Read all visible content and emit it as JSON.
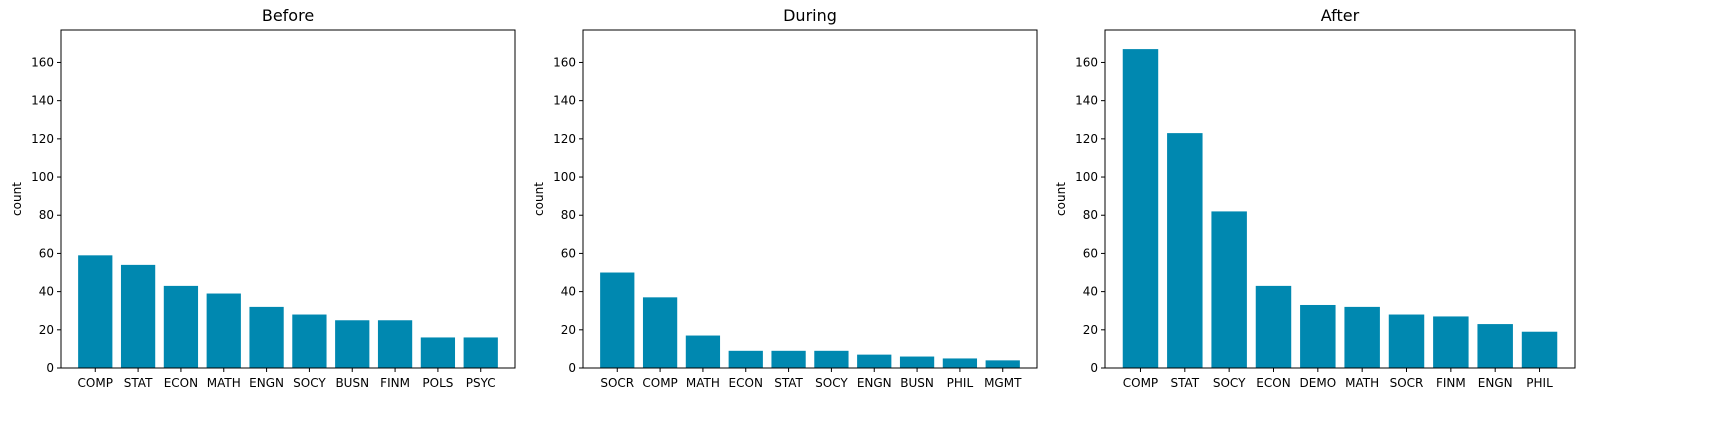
{
  "figure": {
    "bar_color": "#0088b0"
  },
  "chart_data": [
    {
      "type": "bar",
      "title": "Before",
      "ylabel": "count",
      "xlabel": "",
      "ylim": [
        0,
        177
      ],
      "yticks": [
        0,
        20,
        40,
        60,
        80,
        100,
        120,
        140,
        160
      ],
      "categories": [
        "COMP",
        "STAT",
        "ECON",
        "MATH",
        "ENGN",
        "SOCY",
        "BUSN",
        "FINM",
        "POLS",
        "PSYC"
      ],
      "values": [
        59,
        54,
        43,
        39,
        32,
        28,
        25,
        25,
        16,
        16
      ]
    },
    {
      "type": "bar",
      "title": "During",
      "ylabel": "count",
      "xlabel": "",
      "ylim": [
        0,
        177
      ],
      "yticks": [
        0,
        20,
        40,
        60,
        80,
        100,
        120,
        140,
        160
      ],
      "categories": [
        "SOCR",
        "COMP",
        "MATH",
        "ECON",
        "STAT",
        "SOCY",
        "ENGN",
        "BUSN",
        "PHIL",
        "MGMT"
      ],
      "values": [
        50,
        37,
        17,
        9,
        9,
        9,
        7,
        6,
        5,
        4
      ]
    },
    {
      "type": "bar",
      "title": "After",
      "ylabel": "count",
      "xlabel": "",
      "ylim": [
        0,
        177
      ],
      "yticks": [
        0,
        20,
        40,
        60,
        80,
        100,
        120,
        140,
        160
      ],
      "categories": [
        "COMP",
        "STAT",
        "SOCY",
        "ECON",
        "DEMO",
        "MATH",
        "SOCR",
        "FINM",
        "ENGN",
        "PHIL"
      ],
      "values": [
        167,
        123,
        82,
        43,
        33,
        32,
        28,
        27,
        23,
        19
      ]
    }
  ]
}
